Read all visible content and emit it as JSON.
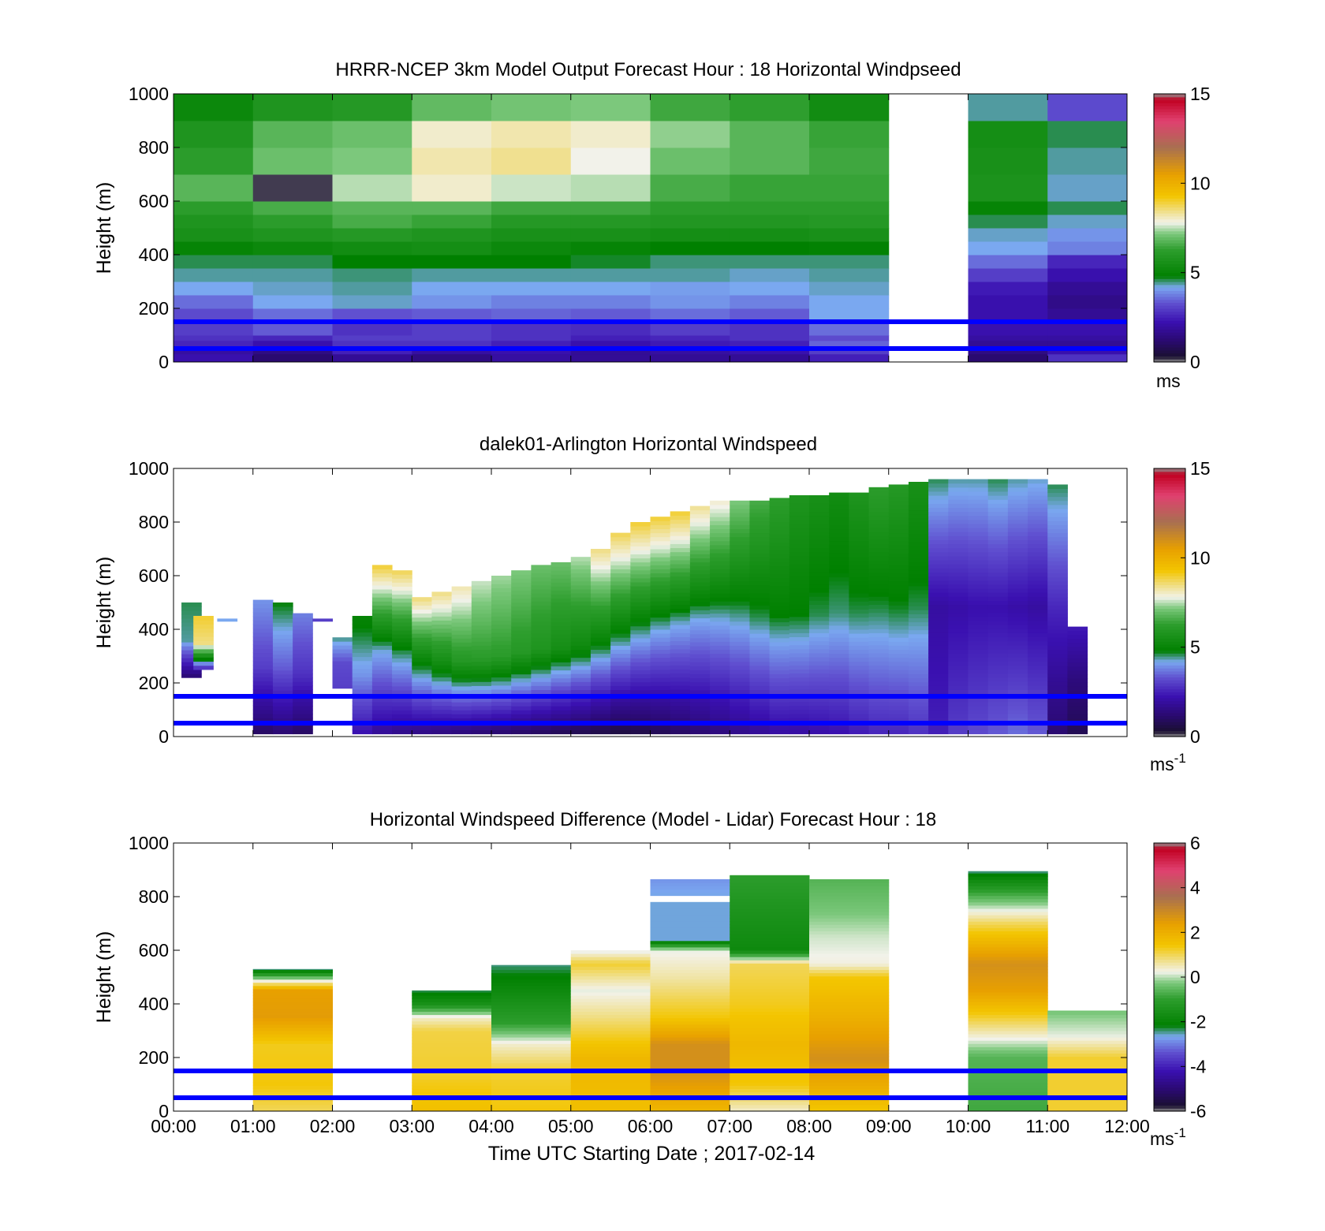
{
  "figure": {
    "xlabel": "Time UTC  Starting Date ; 2017-02-14",
    "reference_lines_m": [
      50,
      150
    ],
    "reference_line_color": "#0000ff"
  },
  "colorscale": [
    [
      0.0,
      "#909090"
    ],
    [
      0.02,
      "#1a1030"
    ],
    [
      0.08,
      "#2a0a70"
    ],
    [
      0.15,
      "#3a10b0"
    ],
    [
      0.22,
      "#6050d0"
    ],
    [
      0.28,
      "#7aa8f0"
    ],
    [
      0.32,
      "#008000"
    ],
    [
      0.42,
      "#2e9e2e"
    ],
    [
      0.48,
      "#7cc87c"
    ],
    [
      0.52,
      "#f2f2ea"
    ],
    [
      0.56,
      "#f0e090"
    ],
    [
      0.62,
      "#f3c500"
    ],
    [
      0.7,
      "#e8a000"
    ],
    [
      0.8,
      "#a87050"
    ],
    [
      0.9,
      "#e04070"
    ],
    [
      0.98,
      "#c00020"
    ],
    [
      1.0,
      "#909090"
    ]
  ],
  "chart_data": [
    {
      "type": "heatmap",
      "title": "HRRR-NCEP 3km Model Output   Forecast Hour : 18 Horizontal Windpseed",
      "ylabel": "Height (m)",
      "ylim": [
        0,
        1000
      ],
      "yticks": [
        "0",
        "200",
        "400",
        "600",
        "800",
        "1000"
      ],
      "colorbar": {
        "ticks": [
          "0",
          "5",
          "10",
          "15"
        ],
        "range": [
          0,
          15
        ],
        "unit": "ms"
      },
      "hours": [
        0,
        1,
        2,
        3,
        4,
        5,
        6,
        7,
        8,
        9,
        10,
        11
      ],
      "heights_top_m": [
        30,
        50,
        80,
        100,
        150,
        200,
        250,
        300,
        350,
        400,
        450,
        500,
        550,
        600,
        700,
        800,
        900,
        1000
      ],
      "values": [
        [
          2.2,
          1.2,
          1.8,
          1.5,
          2.0,
          1.8,
          1.8,
          1.8,
          2.5,
          null,
          1.2,
          2.8
        ],
        [
          2.0,
          1.5,
          2.5,
          2.0,
          2.2,
          1.8,
          2.0,
          2.2,
          3.0,
          null,
          1.5,
          2.2
        ],
        [
          2.6,
          2.2,
          2.8,
          2.8,
          2.5,
          2.2,
          2.4,
          2.5,
          3.5,
          null,
          1.8,
          1.8
        ],
        [
          2.8,
          2.6,
          3.0,
          3.0,
          2.8,
          2.5,
          2.6,
          2.8,
          3.2,
          null,
          2.0,
          2.0
        ],
        [
          3.0,
          3.4,
          2.8,
          3.0,
          2.8,
          2.7,
          3.0,
          2.8,
          3.6,
          null,
          2.2,
          2.2
        ],
        [
          3.2,
          3.6,
          3.3,
          3.4,
          3.5,
          3.4,
          3.6,
          3.4,
          4.2,
          null,
          2.2,
          1.8
        ],
        [
          3.6,
          4.2,
          4.3,
          4.0,
          3.8,
          3.8,
          4.0,
          3.8,
          4.2,
          null,
          2.2,
          1.6
        ],
        [
          4.2,
          4.3,
          4.4,
          4.2,
          4.2,
          4.2,
          4.1,
          4.2,
          4.3,
          null,
          2.4,
          1.8
        ],
        [
          4.4,
          4.4,
          4.5,
          4.4,
          4.4,
          4.4,
          4.4,
          4.3,
          4.4,
          null,
          3.0,
          2.2
        ],
        [
          4.6,
          4.6,
          4.8,
          4.8,
          4.8,
          4.7,
          4.5,
          4.5,
          4.5,
          null,
          3.6,
          2.6
        ],
        [
          5.0,
          5.2,
          5.4,
          5.5,
          5.2,
          5.0,
          4.8,
          4.8,
          4.9,
          null,
          4.2,
          3.8
        ],
        [
          5.6,
          5.8,
          6.0,
          5.8,
          5.6,
          5.6,
          5.5,
          5.5,
          5.6,
          null,
          4.3,
          4.0
        ],
        [
          5.8,
          6.2,
          6.6,
          6.4,
          6.0,
          6.0,
          5.9,
          5.9,
          6.0,
          null,
          4.6,
          4.3
        ],
        [
          6.2,
          6.6,
          6.8,
          6.8,
          6.5,
          6.5,
          6.2,
          6.2,
          6.2,
          null,
          5.0,
          4.6
        ],
        [
          6.8,
          0.2,
          7.5,
          8.0,
          7.6,
          7.5,
          6.6,
          6.4,
          6.4,
          null,
          5.7,
          4.3
        ],
        [
          6.2,
          7.0,
          7.2,
          8.2,
          8.4,
          7.8,
          7.0,
          6.8,
          6.5,
          null,
          5.6,
          4.4
        ],
        [
          5.8,
          6.8,
          7.0,
          8.0,
          8.2,
          8.0,
          7.3,
          6.8,
          6.4,
          null,
          5.5,
          4.6
        ],
        [
          5.2,
          5.8,
          6.0,
          6.9,
          7.1,
          7.2,
          6.5,
          6.3,
          5.4,
          null,
          4.4,
          3.2
        ]
      ]
    },
    {
      "type": "heatmap",
      "title": "dalek01-Arlington  Horizontal Windspeed",
      "ylabel": "Height (m)",
      "ylim": [
        0,
        1000
      ],
      "yticks": [
        "0",
        "200",
        "400",
        "600",
        "800",
        "1000"
      ],
      "colorbar": {
        "ticks": [
          "0",
          "5",
          "10",
          "15"
        ],
        "range": [
          0,
          15
        ],
        "unit": "ms",
        "unit_superscript": "-1"
      },
      "profiles": [
        {
          "t": 0.1,
          "top": 500,
          "bottom": 220,
          "low": 1.2,
          "mid": 4.4,
          "high": 4.6
        },
        {
          "t": 0.25,
          "top": 450,
          "bottom": 250,
          "low": 2.5,
          "mid": 8.5,
          "high": 9.0
        },
        {
          "t": 0.55,
          "top": 440,
          "bottom": 430,
          "low": 4.2,
          "mid": 4.2,
          "high": 4.2
        },
        {
          "t": 1.0,
          "top": 510,
          "bottom": 10,
          "low": 1.0,
          "mid": 3.0,
          "high": 4.0
        },
        {
          "t": 1.25,
          "top": 500,
          "bottom": 10,
          "low": 1.2,
          "mid": 3.4,
          "high": 4.8
        },
        {
          "t": 1.5,
          "top": 460,
          "bottom": 10,
          "low": 1.0,
          "mid": 2.8,
          "high": 3.8
        },
        {
          "t": 1.75,
          "top": 440,
          "bottom": 430,
          "low": 3.0,
          "mid": 3.0,
          "high": 3.0
        },
        {
          "t": 2.0,
          "top": 370,
          "bottom": 180,
          "low": 3.0,
          "mid": 3.2,
          "high": 4.5
        },
        {
          "t": 2.25,
          "top": 450,
          "bottom": 10,
          "low": 2.2,
          "mid": 4.0,
          "high": 5.0
        },
        {
          "t": 2.5,
          "top": 640,
          "bottom": 10,
          "low": 1.8,
          "mid": 4.3,
          "high": 9.0
        },
        {
          "t": 2.75,
          "top": 620,
          "bottom": 10,
          "low": 1.6,
          "mid": 4.6,
          "high": 8.8
        },
        {
          "t": 3.0,
          "top": 520,
          "bottom": 10,
          "low": 1.5,
          "mid": 4.8,
          "high": 8.6
        },
        {
          "t": 3.25,
          "top": 540,
          "bottom": 10,
          "low": 1.4,
          "mid": 5.4,
          "high": 8.5
        },
        {
          "t": 3.5,
          "top": 560,
          "bottom": 10,
          "low": 1.3,
          "mid": 6.0,
          "high": 8.2
        },
        {
          "t": 3.75,
          "top": 580,
          "bottom": 10,
          "low": 1.2,
          "mid": 6.2,
          "high": 7.6
        },
        {
          "t": 4.0,
          "top": 600,
          "bottom": 10,
          "low": 1.1,
          "mid": 6.2,
          "high": 7.4
        },
        {
          "t": 4.25,
          "top": 620,
          "bottom": 10,
          "low": 1.0,
          "mid": 6.0,
          "high": 7.2
        },
        {
          "t": 4.5,
          "top": 640,
          "bottom": 10,
          "low": 0.9,
          "mid": 5.8,
          "high": 7.0
        },
        {
          "t": 4.75,
          "top": 650,
          "bottom": 10,
          "low": 0.8,
          "mid": 5.5,
          "high": 7.0
        },
        {
          "t": 5.0,
          "top": 670,
          "bottom": 10,
          "low": 0.7,
          "mid": 5.3,
          "high": 7.5
        },
        {
          "t": 5.25,
          "top": 700,
          "bottom": 10,
          "low": 0.6,
          "mid": 5.0,
          "high": 8.5
        },
        {
          "t": 5.5,
          "top": 760,
          "bottom": 10,
          "low": 0.5,
          "mid": 4.8,
          "high": 8.8
        },
        {
          "t": 5.75,
          "top": 800,
          "bottom": 10,
          "low": 0.6,
          "mid": 4.6,
          "high": 9.0
        },
        {
          "t": 6.0,
          "top": 820,
          "bottom": 10,
          "low": 0.8,
          "mid": 4.4,
          "high": 9.0
        },
        {
          "t": 6.25,
          "top": 840,
          "bottom": 10,
          "low": 1.0,
          "mid": 4.3,
          "high": 9.0
        },
        {
          "t": 6.5,
          "top": 860,
          "bottom": 10,
          "low": 1.2,
          "mid": 4.2,
          "high": 8.4
        },
        {
          "t": 6.75,
          "top": 880,
          "bottom": 10,
          "low": 1.4,
          "mid": 4.3,
          "high": 8.0
        },
        {
          "t": 7.0,
          "top": 880,
          "bottom": 10,
          "low": 1.6,
          "mid": 4.4,
          "high": 7.2
        },
        {
          "t": 7.25,
          "top": 880,
          "bottom": 10,
          "low": 1.8,
          "mid": 4.6,
          "high": 6.6
        },
        {
          "t": 7.5,
          "top": 890,
          "bottom": 10,
          "low": 2.0,
          "mid": 4.8,
          "high": 6.2
        },
        {
          "t": 7.75,
          "top": 900,
          "bottom": 10,
          "low": 2.0,
          "mid": 4.8,
          "high": 5.8
        },
        {
          "t": 8.0,
          "top": 900,
          "bottom": 10,
          "low": 2.1,
          "mid": 4.6,
          "high": 5.6
        },
        {
          "t": 8.25,
          "top": 910,
          "bottom": 10,
          "low": 2.2,
          "mid": 4.5,
          "high": 5.4
        },
        {
          "t": 8.5,
          "top": 910,
          "bottom": 10,
          "low": 2.4,
          "mid": 4.6,
          "high": 5.8
        },
        {
          "t": 8.75,
          "top": 930,
          "bottom": 10,
          "low": 2.6,
          "mid": 4.6,
          "high": 6.2
        },
        {
          "t": 9.0,
          "top": 940,
          "bottom": 10,
          "low": 2.6,
          "mid": 4.7,
          "high": 6.0
        },
        {
          "t": 9.25,
          "top": 950,
          "bottom": 10,
          "low": 2.8,
          "mid": 4.6,
          "high": 5.6
        },
        {
          "t": 9.5,
          "top": 960,
          "bottom": 10,
          "low": 2.5,
          "mid": 2.0,
          "high": 4.6
        },
        {
          "t": 9.75,
          "top": 960,
          "bottom": 10,
          "low": 3.0,
          "mid": 2.1,
          "high": 4.4
        },
        {
          "t": 10.0,
          "top": 960,
          "bottom": 10,
          "low": 3.2,
          "mid": 2.2,
          "high": 4.4
        },
        {
          "t": 10.25,
          "top": 960,
          "bottom": 10,
          "low": 3.4,
          "mid": 2.2,
          "high": 4.6
        },
        {
          "t": 10.5,
          "top": 960,
          "bottom": 10,
          "low": 3.6,
          "mid": 2.1,
          "high": 4.4
        },
        {
          "t": 10.75,
          "top": 960,
          "bottom": 10,
          "low": 3.4,
          "mid": 2.0,
          "high": 4.3
        },
        {
          "t": 11.0,
          "top": 940,
          "bottom": 10,
          "low": 1.2,
          "mid": 2.6,
          "high": 4.6
        },
        {
          "t": 11.25,
          "top": 410,
          "bottom": 10,
          "low": 0.8,
          "mid": 1.4,
          "high": 2.4
        }
      ]
    },
    {
      "type": "heatmap",
      "title": "Horizontal Windspeed Difference (Model - Lidar) Forecast Hour : 18",
      "ylabel": "Height (m)",
      "ylim": [
        0,
        1000
      ],
      "yticks": [
        "0",
        "200",
        "400",
        "600",
        "800",
        "1000"
      ],
      "xticks": [
        "00:00",
        "01:00",
        "02:00",
        "03:00",
        "04:00",
        "05:00",
        "06:00",
        "07:00",
        "08:00",
        "09:00",
        "10:00",
        "11:00",
        "12:00"
      ],
      "colorbar": {
        "ticks": [
          "-6",
          "-4",
          "-2",
          "0",
          "2",
          "4"
        ],
        "top_tick": "6",
        "range": [
          -6,
          6
        ],
        "unit": "ms",
        "unit_superscript": "-1"
      },
      "columns": [
        {
          "hour": 1,
          "top": 530,
          "values": [
            [
              0,
              1.0
            ],
            [
              100,
              1.4
            ],
            [
              250,
              1.3
            ],
            [
              350,
              2.5
            ],
            [
              450,
              2.4
            ],
            [
              500,
              -0.5
            ],
            [
              530,
              -2.4
            ]
          ]
        },
        {
          "hour": 3,
          "top": 450,
          "values": [
            [
              0,
              1.6
            ],
            [
              150,
              1.2
            ],
            [
              300,
              1.1
            ],
            [
              350,
              0.4
            ],
            [
              400,
              -1.5
            ],
            [
              450,
              -2.3
            ]
          ]
        },
        {
          "hour": 4,
          "top": 545,
          "values": [
            [
              0,
              1.4
            ],
            [
              150,
              1.2
            ],
            [
              250,
              0.4
            ],
            [
              330,
              -1.0
            ],
            [
              450,
              -1.8
            ],
            [
              545,
              -2.4
            ]
          ]
        },
        {
          "hour": 5,
          "top": 600,
          "values": [
            [
              0,
              1.6
            ],
            [
              200,
              1.8
            ],
            [
              350,
              0.8
            ],
            [
              450,
              0.2
            ],
            [
              550,
              1.2
            ],
            [
              600,
              0.1
            ]
          ]
        },
        {
          "hour": 6,
          "top": 865,
          "values": [
            [
              0,
              1.8
            ],
            [
              150,
              2.8
            ],
            [
              250,
              2.8
            ],
            [
              350,
              1.4
            ],
            [
              500,
              0.6
            ],
            [
              600,
              0.2
            ],
            [
              640,
              -2.6
            ],
            [
              780,
              null
            ],
            [
              800,
              -2.6
            ],
            [
              865,
              -2.8
            ]
          ]
        },
        {
          "hour": 7,
          "top": 880,
          "values": [
            [
              0,
              0.4
            ],
            [
              100,
              1.4
            ],
            [
              250,
              1.8
            ],
            [
              400,
              1.3
            ],
            [
              550,
              1.0
            ],
            [
              600,
              -1.8
            ],
            [
              750,
              -1.4
            ],
            [
              880,
              -1.0
            ]
          ]
        },
        {
          "hour": 8,
          "top": 865,
          "values": [
            [
              0,
              1.4
            ],
            [
              200,
              2.8
            ],
            [
              350,
              2.0
            ],
            [
              500,
              1.4
            ],
            [
              550,
              0.3
            ],
            [
              650,
              0.1
            ],
            [
              750,
              -0.3
            ],
            [
              865,
              -0.6
            ]
          ]
        },
        {
          "hour": 10,
          "top": 895,
          "values": [
            [
              0,
              -0.8
            ],
            [
              200,
              -0.6
            ],
            [
              300,
              0.6
            ],
            [
              450,
              2.4
            ],
            [
              550,
              2.8
            ],
            [
              700,
              1.0
            ],
            [
              800,
              -0.6
            ],
            [
              895,
              -2.4
            ]
          ]
        },
        {
          "hour": 11,
          "top": 375,
          "values": [
            [
              0,
              1.2
            ],
            [
              200,
              1.2
            ],
            [
              280,
              0.2
            ],
            [
              320,
              0.0
            ],
            [
              375,
              -0.3
            ]
          ]
        }
      ]
    }
  ]
}
